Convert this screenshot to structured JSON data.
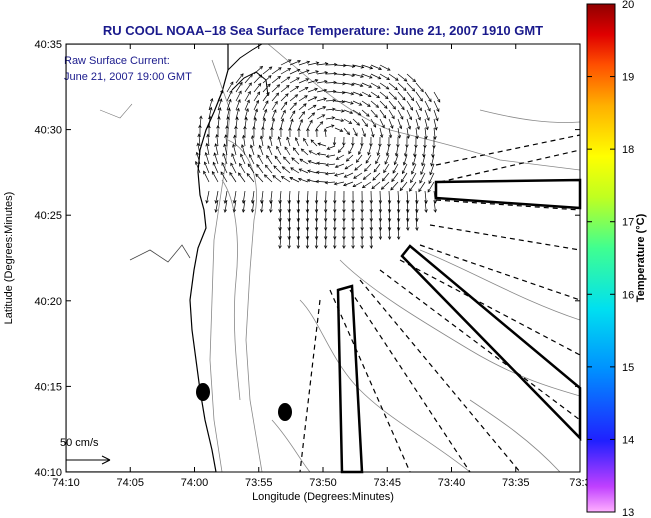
{
  "title": "RU COOL  NOAA–18  Sea Surface Temperature:  June 21, 2007 1910 GMT",
  "annotation": {
    "line1": "Raw Surface Current:",
    "line2": "June 21, 2007 19:00 GMT"
  },
  "scale_label": "50 cm/s",
  "axes": {
    "xlabel": "Longitude (Degrees:Minutes)",
    "ylabel": "Latitude (Degrees:Minutes)",
    "x_ticks": [
      "74:10",
      "74:05",
      "74:00",
      "73:55",
      "73:50",
      "73:45",
      "73:40",
      "73:35",
      "73:3"
    ],
    "y_ticks": [
      "40:35",
      "40:30",
      "40:25",
      "40:20",
      "40:15",
      "40:10"
    ]
  },
  "colorbar": {
    "label": "Temperature (°C)",
    "ticks": [
      "20",
      "19",
      "18",
      "17",
      "16",
      "15",
      "14",
      "13"
    ],
    "min": 13,
    "max": 20
  },
  "colors": {
    "title": "#1a1a8c",
    "coast": "#000000",
    "bathymetry": "#888888",
    "vectors": "#000000"
  }
}
